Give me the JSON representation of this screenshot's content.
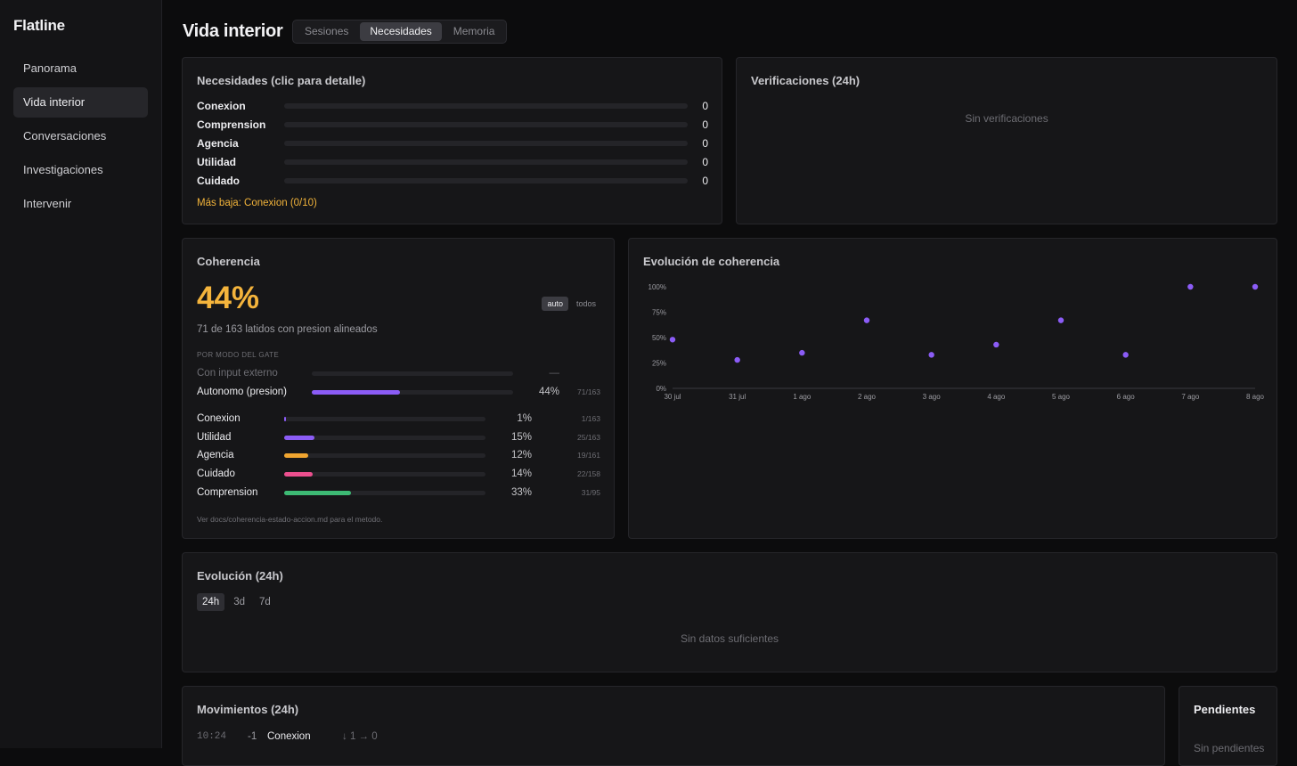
{
  "app": {
    "name": "Flatline"
  },
  "sidebar": {
    "items": [
      {
        "label": "Panorama"
      },
      {
        "label": "Vida interior"
      },
      {
        "label": "Conversaciones"
      },
      {
        "label": "Investigaciones"
      },
      {
        "label": "Intervenir"
      }
    ],
    "active": "Vida interior"
  },
  "header": {
    "title": "Vida interior",
    "tabs": [
      {
        "label": "Sesiones"
      },
      {
        "label": "Necesidades"
      },
      {
        "label": "Memoria"
      }
    ],
    "active_tab": "Necesidades"
  },
  "needs": {
    "title": "Necesidades (clic para detalle)",
    "rows": [
      {
        "label": "Conexion",
        "value": "0"
      },
      {
        "label": "Comprension",
        "value": "0"
      },
      {
        "label": "Agencia",
        "value": "0"
      },
      {
        "label": "Utilidad",
        "value": "0"
      },
      {
        "label": "Cuidado",
        "value": "0"
      }
    ],
    "lowest": "Más baja: Conexion (0/10)"
  },
  "verifications": {
    "title": "Verificaciones (24h)",
    "empty": "Sin verificaciones"
  },
  "coherence": {
    "title": "Coherencia",
    "percent": "44%",
    "toggle": [
      {
        "label": "auto"
      },
      {
        "label": "todos"
      }
    ],
    "toggle_active": "auto",
    "subtitle": "71 de 163 latidos con presion alineados",
    "section_label": "POR MODO DEL GATE",
    "modes": [
      {
        "label": "Con input externo",
        "pct_text": "—",
        "count": "",
        "fraction": 0,
        "color": "#8b5cf6",
        "dim": true
      },
      {
        "label": "Autonomo (presion)",
        "pct_text": "44%",
        "count": "71/163",
        "fraction": 0.44,
        "color": "#8b5cf6",
        "dim": false
      }
    ],
    "needs": [
      {
        "label": "Conexion",
        "pct_text": "1%",
        "count": "1/163",
        "fraction": 0.01,
        "color": "#8b5cf6"
      },
      {
        "label": "Utilidad",
        "pct_text": "15%",
        "count": "25/163",
        "fraction": 0.15,
        "color": "#8b5cf6"
      },
      {
        "label": "Agencia",
        "pct_text": "12%",
        "count": "19/161",
        "fraction": 0.12,
        "color": "#f0a530"
      },
      {
        "label": "Cuidado",
        "pct_text": "14%",
        "count": "22/158",
        "fraction": 0.14,
        "color": "#ec4f8e"
      },
      {
        "label": "Comprension",
        "pct_text": "33%",
        "count": "31/95",
        "fraction": 0.33,
        "color": "#3dba74"
      }
    ],
    "footnote": "Ver docs/coherencia-estado-accion.md para el metodo."
  },
  "coherence_evolution": {
    "title": "Evolución de coherencia",
    "chart_data": {
      "type": "scatter",
      "x": [
        "30 jul",
        "31 jul",
        "1 ago",
        "2 ago",
        "3 ago",
        "4 ago",
        "5 ago",
        "6 ago",
        "7 ago",
        "8 ago"
      ],
      "y": [
        48,
        28,
        35,
        67,
        33,
        43,
        67,
        33,
        100,
        100
      ],
      "ylim": [
        0,
        100
      ],
      "yticks": [
        "0%",
        "25%",
        "50%",
        "75%",
        "100%"
      ],
      "color": "#8b5cf6"
    }
  },
  "evolution24": {
    "title": "Evolución (24h)",
    "ranges": [
      {
        "label": "24h"
      },
      {
        "label": "3d"
      },
      {
        "label": "7d"
      }
    ],
    "active_range": "24h",
    "empty": "Sin datos suficientes"
  },
  "movements": {
    "title": "Movimientos (24h)",
    "rows": [
      {
        "time": "10:24",
        "delta": "-1",
        "need": "Conexion",
        "change": "↓ 1 → 0"
      }
    ]
  },
  "pending": {
    "title": "Pendientes",
    "empty": "Sin pendientes"
  }
}
